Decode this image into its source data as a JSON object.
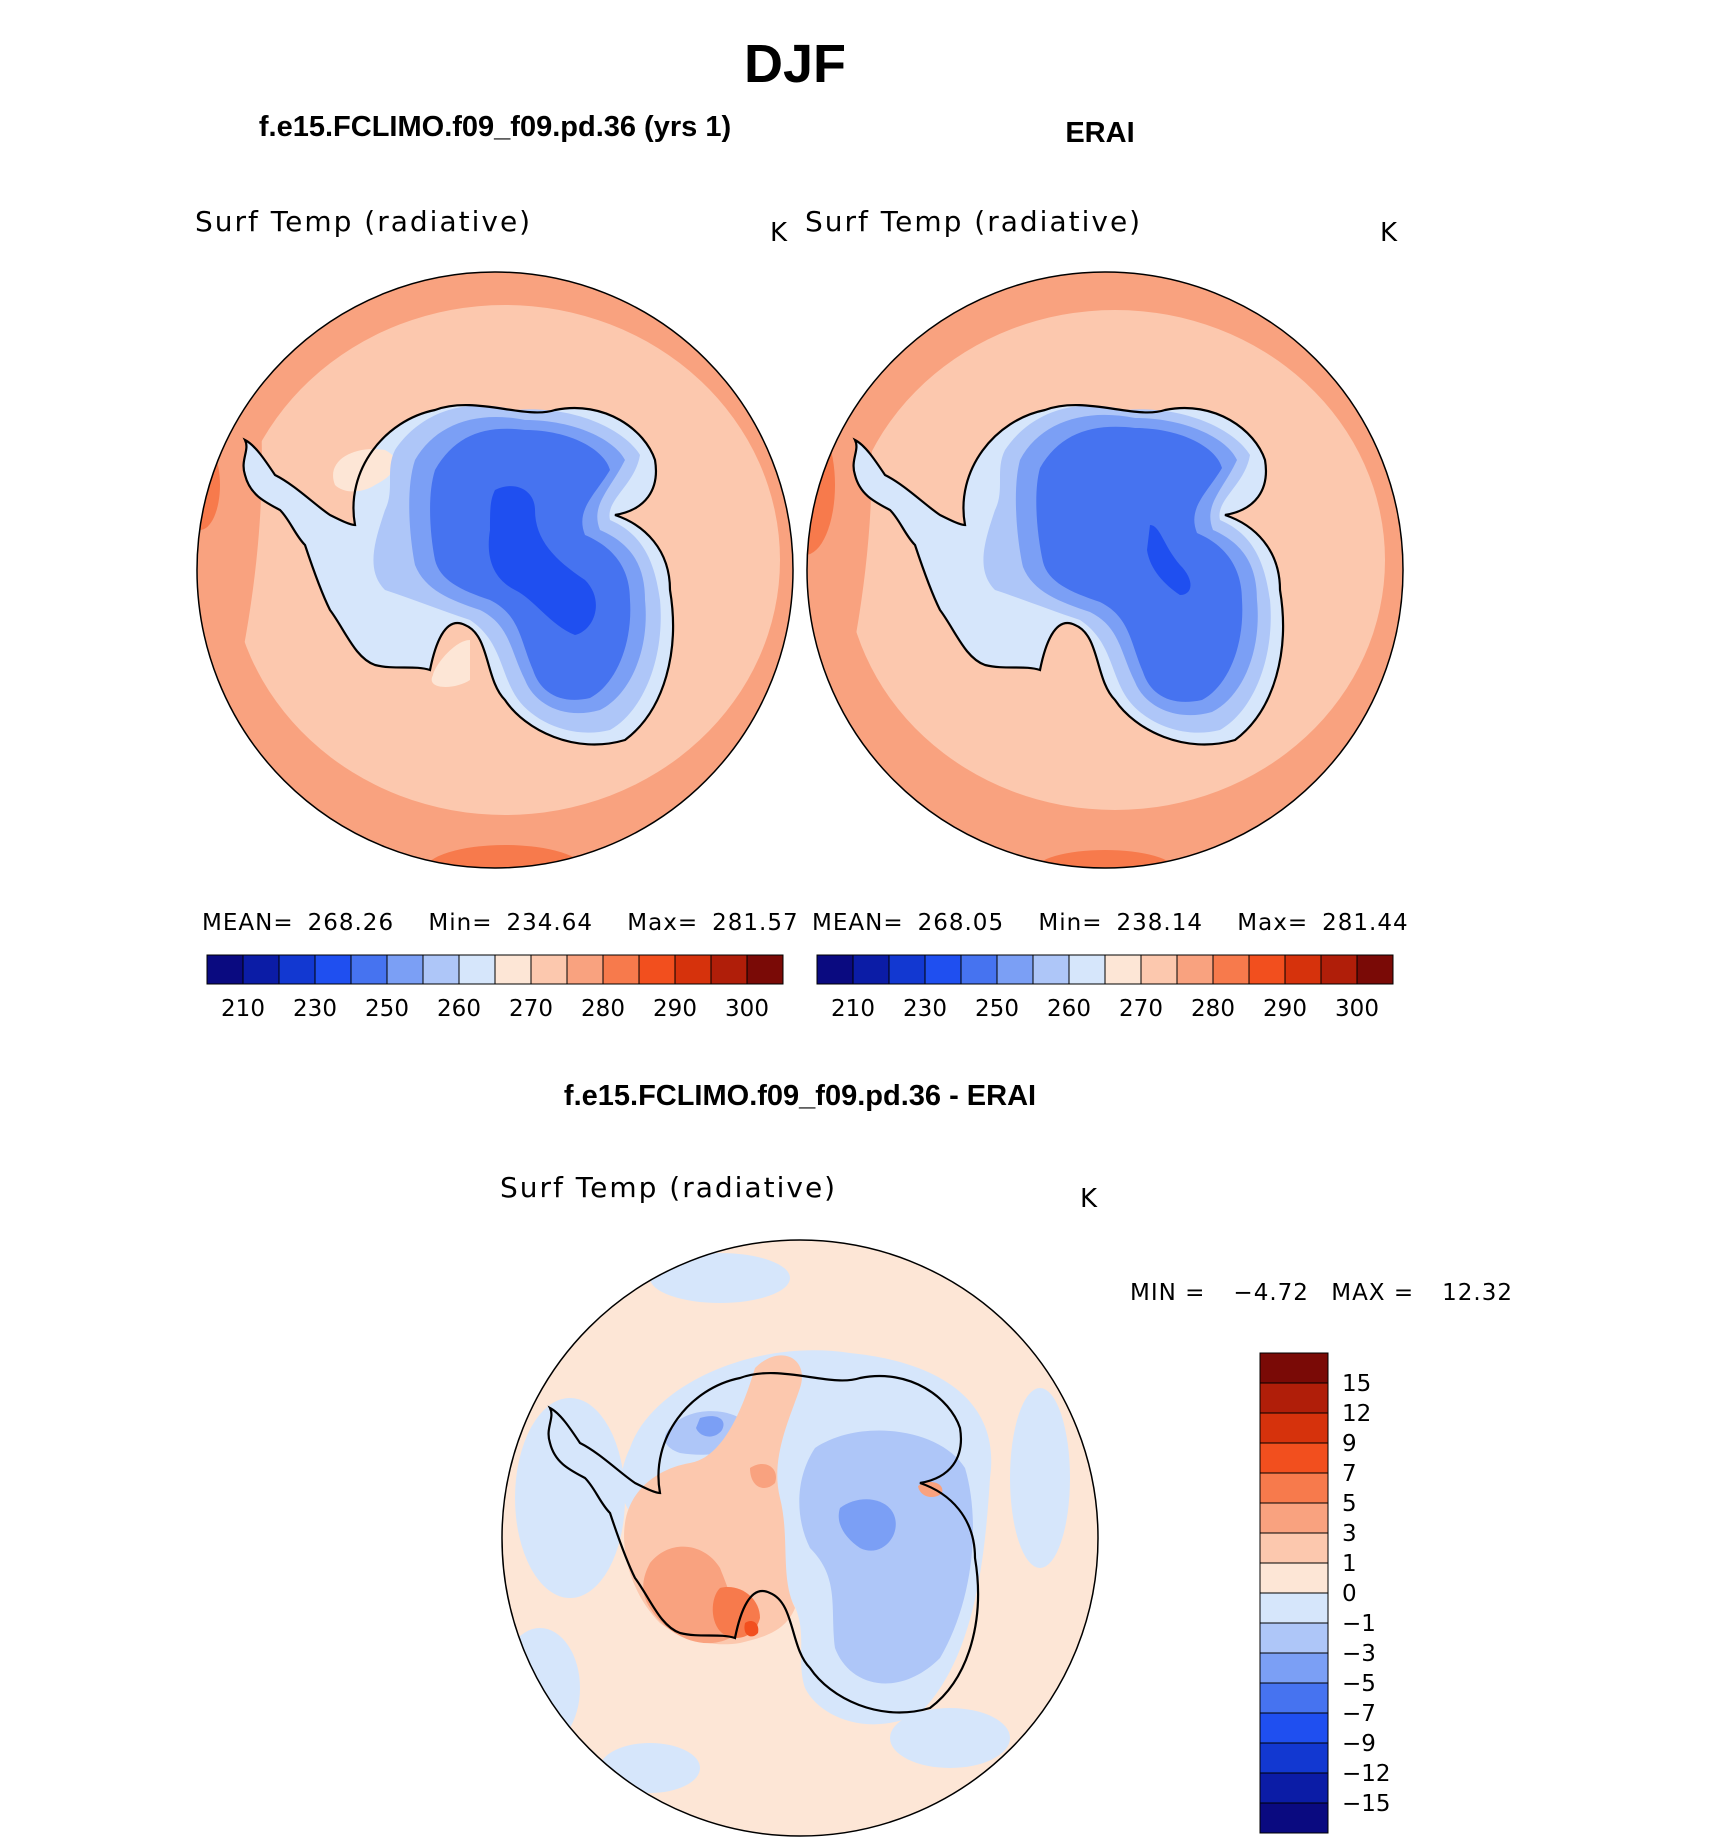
{
  "figure_title": "DJF",
  "panels": [
    {
      "title": "f.e15.FCLIMO.f09_f09.pd.36 (yrs 1)",
      "variable": "Surf Temp (radiative)",
      "units": "K",
      "mean": "268.26",
      "min": "234.64",
      "max": "281.57"
    },
    {
      "title": "ERAI",
      "variable": "Surf Temp (radiative)",
      "units": "K",
      "mean": "268.05",
      "min": "238.14",
      "max": "281.44"
    },
    {
      "title": "f.e15.FCLIMO.f09_f09.pd.36 - ERAI",
      "variable": "Surf Temp (radiative)",
      "units": "K",
      "min": "−4.72",
      "max": "12.32"
    }
  ],
  "stat_labels": {
    "mean": "MEAN=",
    "min": "Min=",
    "max": "Max=",
    "diff_min": "MIN =",
    "diff_max": "MAX ="
  },
  "colorbar_abs": {
    "colors": [
      "#0a0a80",
      "#0b1ca6",
      "#1238d1",
      "#1f4ff0",
      "#4673f0",
      "#7b9ff5",
      "#aec6f8",
      "#d6e6fb",
      "#fde6d6",
      "#fcc8ae",
      "#f9a27f",
      "#f77a4c",
      "#f24f1e",
      "#d6320c",
      "#b01e09",
      "#7a0a06"
    ],
    "ticks": [
      "210",
      "230",
      "250",
      "260",
      "270",
      "280",
      "290",
      "300"
    ]
  },
  "colorbar_diff": {
    "colors": [
      "#0a0a80",
      "#0b1ca6",
      "#1238d1",
      "#1f4ff0",
      "#4673f0",
      "#7b9ff5",
      "#aec6f8",
      "#d6e6fb",
      "#fde6d6",
      "#fcc8ae",
      "#f9a27f",
      "#f77a4c",
      "#f24f1e",
      "#d6320c",
      "#b01e09",
      "#7a0a06"
    ],
    "ticks": [
      "−15",
      "−12",
      "−9",
      "−7",
      "−5",
      "−3",
      "−1",
      "0",
      "1",
      "3",
      "5",
      "7",
      "9",
      "12",
      "15"
    ]
  },
  "chart_data": [
    {
      "type": "heatmap",
      "title": "f.e15.FCLIMO.f09_f09.pd.36 (yrs 1)",
      "subtitle": "Surf Temp (radiative)",
      "units": "K",
      "projection": "south polar stereographic",
      "mean": 268.26,
      "min": 234.64,
      "max": 281.57,
      "levels": [
        210,
        220,
        230,
        240,
        250,
        255,
        260,
        265,
        270,
        275,
        280,
        285,
        290,
        295,
        300
      ]
    },
    {
      "type": "heatmap",
      "title": "ERAI",
      "subtitle": "Surf Temp (radiative)",
      "units": "K",
      "projection": "south polar stereographic",
      "mean": 268.05,
      "min": 238.14,
      "max": 281.44,
      "levels": [
        210,
        220,
        230,
        240,
        250,
        255,
        260,
        265,
        270,
        275,
        280,
        285,
        290,
        295,
        300
      ]
    },
    {
      "type": "heatmap",
      "title": "f.e15.FCLIMO.f09_f09.pd.36 - ERAI",
      "subtitle": "Surf Temp (radiative)",
      "units": "K",
      "projection": "south polar stereographic",
      "min": -4.72,
      "max": 12.32,
      "levels": [
        -15,
        -12,
        -9,
        -7,
        -5,
        -3,
        -1,
        0,
        1,
        3,
        5,
        7,
        9,
        12,
        15
      ]
    }
  ]
}
